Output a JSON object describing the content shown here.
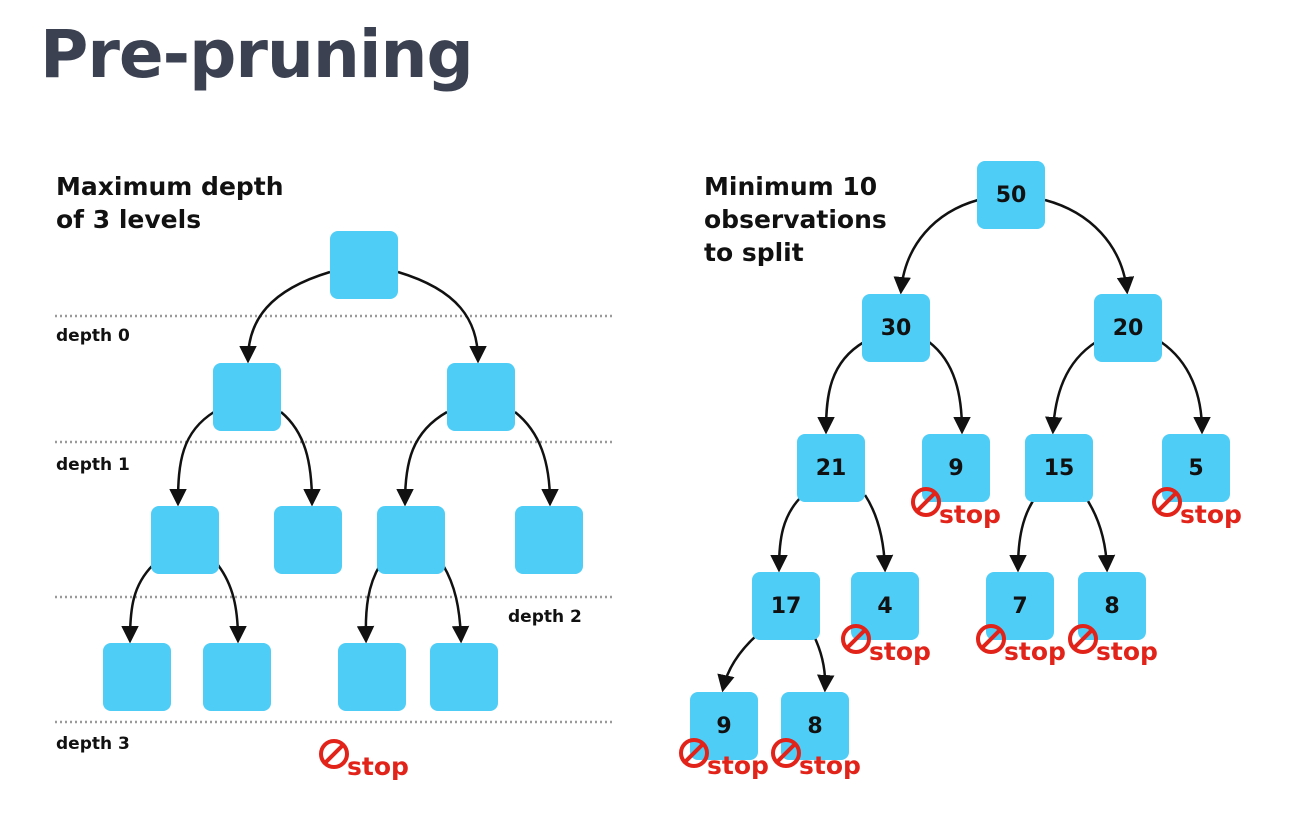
{
  "title": "Pre-pruning",
  "left_panel": {
    "caption_line1": "Maximum depth",
    "caption_line2": "of 3 levels",
    "depth_labels": [
      "depth 0",
      "depth 1",
      "depth 2",
      "depth 3"
    ]
  },
  "right_panel": {
    "caption_line1": "Minimum 10",
    "caption_line2": "observations",
    "caption_line3": "to split",
    "values": {
      "root": "50",
      "n30": "30",
      "n20": "20",
      "n21": "21",
      "n9a": "9",
      "n15": "15",
      "n5": "5",
      "n17": "17",
      "n4": "4",
      "n7": "7",
      "n8a": "8",
      "n9b": "9",
      "n8b": "8"
    }
  },
  "stop_label": "stop",
  "colors": {
    "node_fill": "#4ecdf7",
    "stop_red": "#e2231a",
    "title": "#3b4151",
    "dotted_line": "#9a9a9a"
  }
}
